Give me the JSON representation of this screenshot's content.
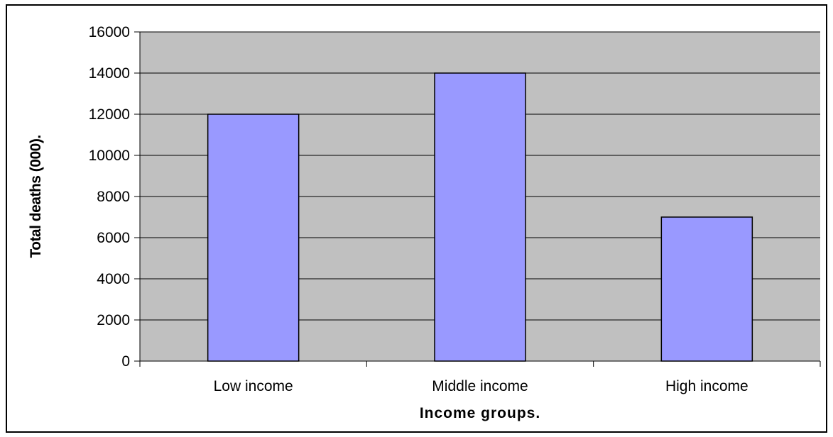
{
  "chart_data": {
    "type": "bar",
    "title": "",
    "categories": [
      "Low income",
      "Middle income",
      "High income"
    ],
    "values": [
      12000,
      14000,
      7000
    ],
    "xlabel": "Income groups.",
    "ylabel": "Total deaths (000).",
    "ylim": [
      0,
      16000
    ],
    "yticks": [
      "0",
      "2000",
      "4000",
      "6000",
      "8000",
      "10000",
      "12000",
      "14000",
      "16000"
    ],
    "grid": true,
    "legend": "none",
    "colors": {
      "plot_background": "#c0c0c0",
      "bar_fill": "#9999ff",
      "bar_stroke": "#000000",
      "gridline": "#000000"
    }
  }
}
